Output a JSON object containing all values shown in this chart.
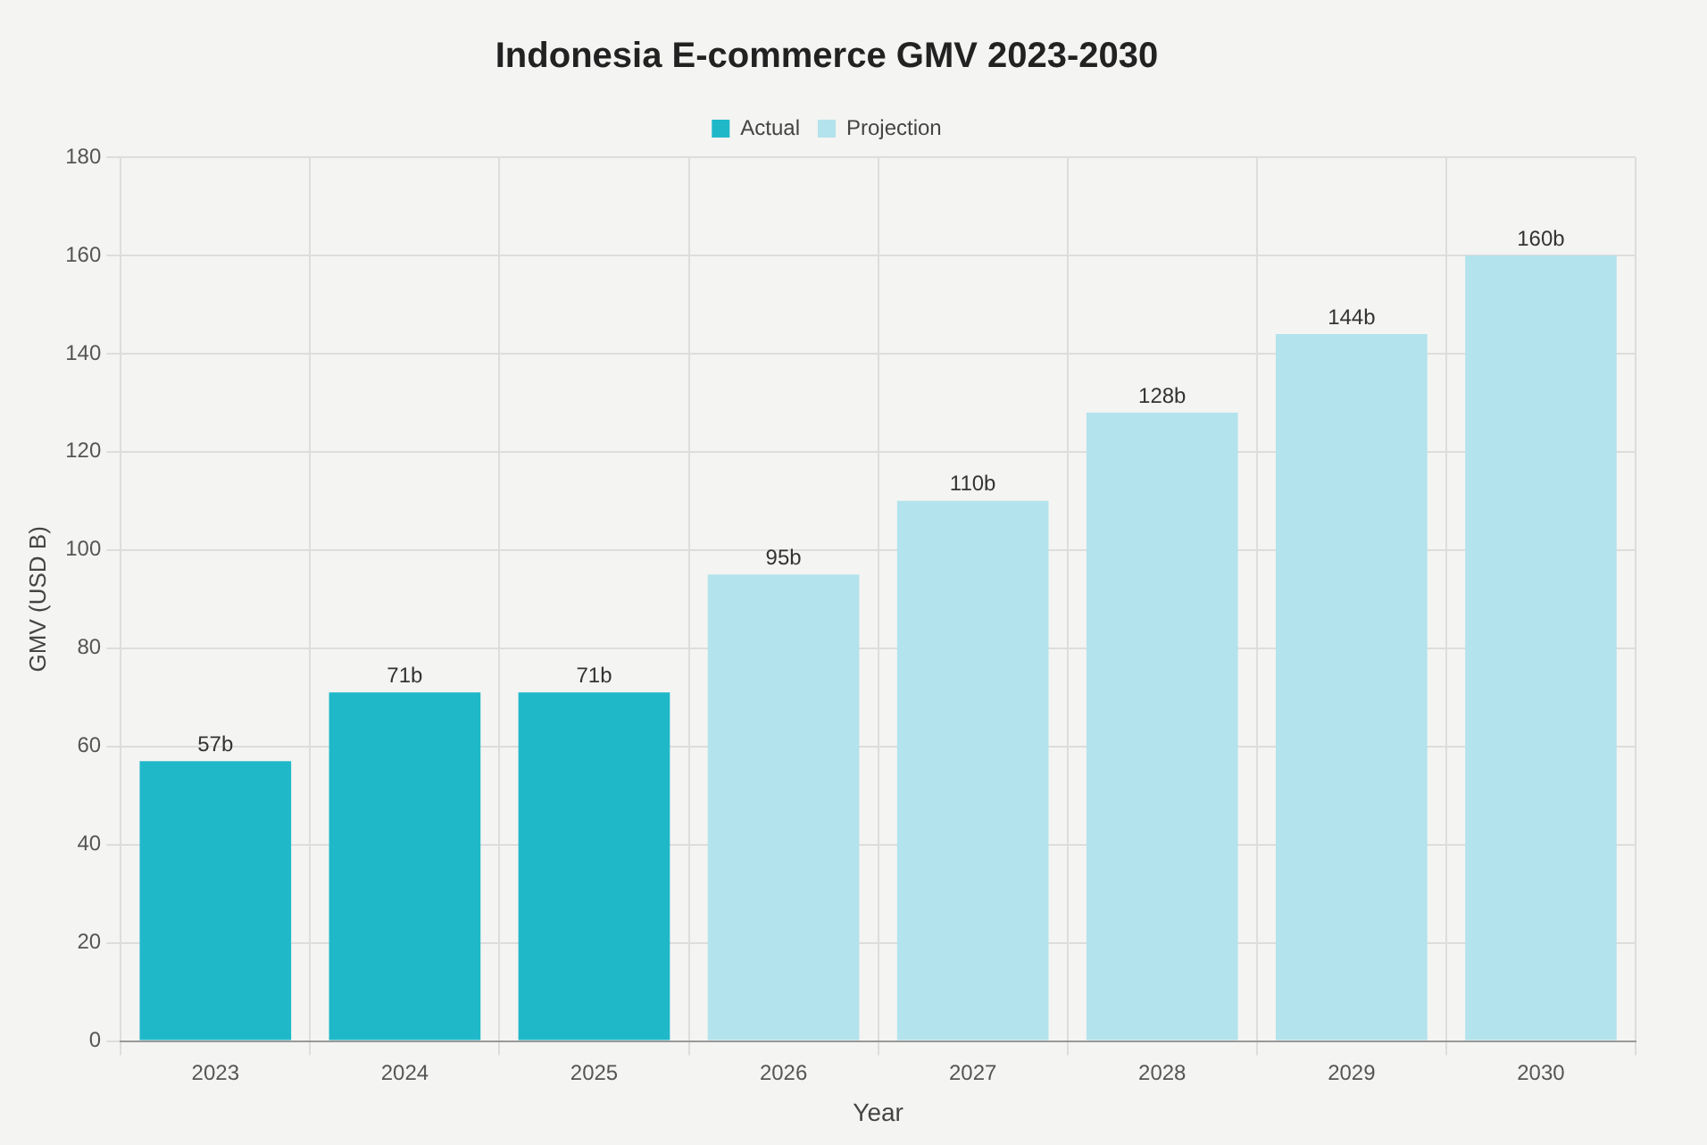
{
  "chart_data": {
    "type": "bar",
    "title": "Indonesia E-commerce GMV 2023-2030",
    "xlabel": "Year",
    "ylabel": "GMV (USD B)",
    "categories": [
      "2023",
      "2024",
      "2025",
      "2026",
      "2027",
      "2028",
      "2029",
      "2030"
    ],
    "series": [
      {
        "name": "Actual",
        "color": "#1fb8c9",
        "values": [
          57,
          71,
          71,
          null,
          null,
          null,
          null,
          null
        ],
        "value_labels": [
          "57b",
          "71b",
          "71b",
          null,
          null,
          null,
          null,
          null
        ]
      },
      {
        "name": "Projection",
        "color": "#b3e3ec",
        "values": [
          null,
          null,
          null,
          95,
          110,
          128,
          144,
          160
        ],
        "value_labels": [
          null,
          null,
          null,
          "95b",
          "110b",
          "128b",
          "144b",
          "160b"
        ]
      }
    ],
    "ylim": [
      0,
      180
    ],
    "yticks": [
      0,
      20,
      40,
      60,
      80,
      100,
      120,
      140,
      160,
      180
    ],
    "grid": true,
    "legend": "top"
  }
}
